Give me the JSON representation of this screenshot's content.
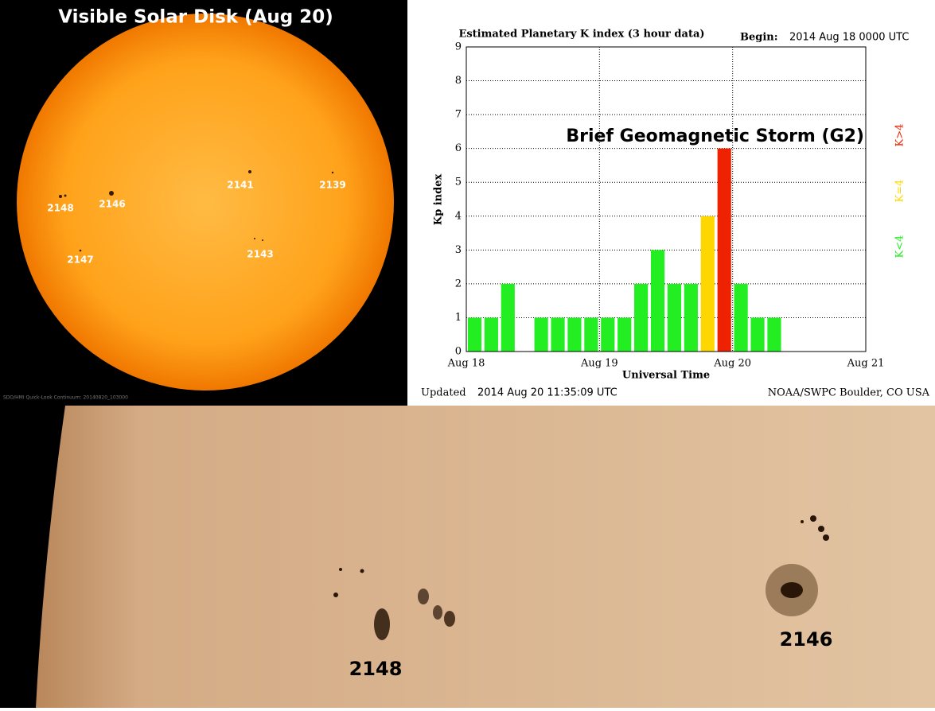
{
  "solar_disk": {
    "title": "Visible Solar Disk (Aug 20)",
    "regions": [
      "2148",
      "2146",
      "2141",
      "2139",
      "2147",
      "2143"
    ],
    "credit": "SDO/HMI Quick-Look Continuum: 20140820_103000"
  },
  "chart_data": {
    "type": "bar",
    "title": "Estimated Planetary K index (3 hour data)",
    "begin_label": "Begin:",
    "begin": "2014 Aug 18 0000 UTC",
    "ylabel": "Kp index",
    "xlabel": "Universal Time",
    "updated_label": "Updated",
    "updated": "2014 Aug 20 11:35:09 UTC",
    "source": "NOAA/SWPC Boulder, CO USA",
    "annotation": "Brief Geomagnetic Storm (G2)",
    "x": [
      1.5,
      4.5,
      7.5,
      10.5,
      13.5,
      16.5,
      19.5,
      22.5,
      25.5,
      28.5,
      31.5,
      34.5,
      37.5,
      40.5,
      43.5,
      46.5,
      49.5,
      52.5,
      55.5,
      58.5,
      61.5,
      64.5,
      67.5,
      70.5
    ],
    "series": [
      {
        "name": "K<4",
        "color": "#22ee22",
        "values": [
          1,
          1,
          2,
          null,
          1,
          1,
          1,
          1,
          1,
          1,
          2,
          3,
          2,
          2,
          null,
          null,
          2,
          1,
          1,
          null,
          null,
          null,
          null,
          null
        ]
      },
      {
        "name": "K=4",
        "color": "#ffd700",
        "values": [
          null,
          null,
          null,
          null,
          null,
          null,
          null,
          null,
          null,
          null,
          null,
          null,
          null,
          null,
          4,
          null,
          null,
          null,
          null,
          null,
          null,
          null,
          null,
          null
        ]
      },
      {
        "name": "K>4",
        "color": "#ee2200",
        "values": [
          null,
          null,
          null,
          null,
          null,
          null,
          null,
          null,
          null,
          null,
          null,
          null,
          null,
          null,
          null,
          6,
          null,
          null,
          null,
          null,
          null,
          null,
          null,
          null
        ]
      }
    ],
    "xlim": [
      0,
      72
    ],
    "xticks": [
      {
        "value": 0,
        "label": "Aug 18"
      },
      {
        "value": 24,
        "label": "Aug 19"
      },
      {
        "value": 48,
        "label": "Aug 20"
      },
      {
        "value": 72,
        "label": "Aug 21"
      }
    ],
    "ylim": [
      0,
      9
    ],
    "yticks": [
      0,
      1,
      2,
      3,
      4,
      5,
      6,
      7,
      8,
      9
    ],
    "grid": true
  },
  "closeup": {
    "regions": [
      "2148",
      "2146"
    ]
  }
}
